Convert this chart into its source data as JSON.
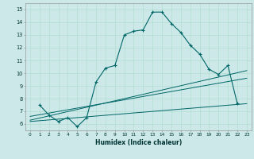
{
  "xlabel": "Humidex (Indice chaleur)",
  "bg_color": "#cce8e8",
  "line_color": "#006666",
  "xlim": [
    -0.5,
    23.5
  ],
  "ylim": [
    5.5,
    15.5
  ],
  "yticks": [
    6,
    7,
    8,
    9,
    10,
    11,
    12,
    13,
    14,
    15
  ],
  "xticks": [
    0,
    1,
    2,
    3,
    4,
    5,
    6,
    7,
    8,
    9,
    10,
    11,
    12,
    13,
    14,
    15,
    16,
    17,
    18,
    19,
    20,
    21,
    22,
    23
  ],
  "line1_x": [
    1,
    2,
    3,
    4,
    5,
    6,
    7,
    8,
    9,
    10,
    11,
    12,
    13,
    14,
    15,
    16,
    17,
    18,
    19,
    20,
    21,
    22
  ],
  "line1_y": [
    7.5,
    6.7,
    6.2,
    6.5,
    5.8,
    6.5,
    9.3,
    10.4,
    10.6,
    13.0,
    13.3,
    13.4,
    14.8,
    14.8,
    13.9,
    13.2,
    12.2,
    11.5,
    10.3,
    9.9,
    10.6,
    7.6
  ],
  "line2_x": [
    0,
    23
  ],
  "line2_y": [
    6.3,
    10.2
  ],
  "line3_x": [
    0,
    23
  ],
  "line3_y": [
    6.6,
    9.6
  ],
  "line4_x": [
    0,
    23
  ],
  "line4_y": [
    6.2,
    7.6
  ]
}
